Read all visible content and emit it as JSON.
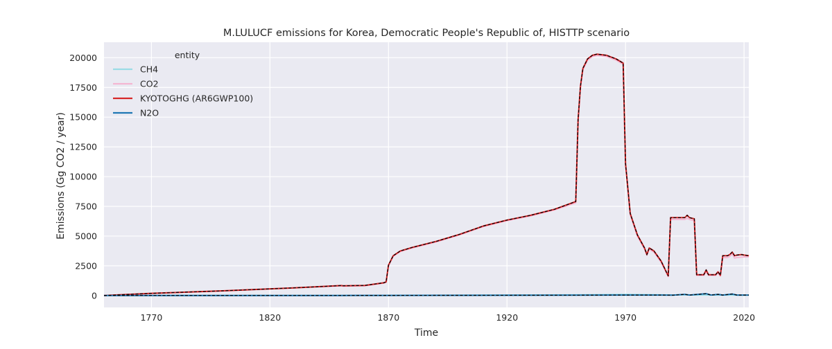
{
  "colors": {
    "plot_bg": "#EAEAF2",
    "grid": "#FFFFFF",
    "CH4": "#9ADCE6",
    "CO2": "#F4B6D2",
    "KYOTOGHG": "#D62728",
    "N2O": "#1F77B4",
    "overlay": "#000000"
  },
  "chart_data": {
    "type": "line",
    "title": "M.LULUCF emissions for Korea, Democratic People's Republic of, HISTTP scenario",
    "xlabel": "Time",
    "ylabel": "Emissions (Gg CO2 / year)",
    "xlim": [
      1750,
      2022
    ],
    "ylim": [
      -1000,
      21300
    ],
    "x_ticks": [
      1770,
      1820,
      1870,
      1920,
      1970,
      2020
    ],
    "y_ticks": [
      0,
      2500,
      5000,
      7500,
      10000,
      12500,
      15000,
      17500,
      20000
    ],
    "grid": true,
    "legend": {
      "title": "entity",
      "position": "upper-left"
    },
    "series": [
      {
        "name": "CH4",
        "color_key": "CH4",
        "dashed_overlay": false,
        "points": [
          [
            1750,
            5
          ],
          [
            1800,
            8
          ],
          [
            1850,
            12
          ],
          [
            1870,
            20
          ],
          [
            1900,
            30
          ],
          [
            1950,
            60
          ],
          [
            1970,
            100
          ],
          [
            1980,
            80
          ],
          [
            1990,
            50
          ],
          [
            1995,
            60
          ],
          [
            2000,
            40
          ],
          [
            2010,
            40
          ],
          [
            2022,
            30
          ]
        ]
      },
      {
        "name": "CO2",
        "color_key": "CO2",
        "dashed_overlay": false,
        "points": [
          [
            1750,
            0
          ],
          [
            1770,
            180
          ],
          [
            1800,
            390
          ],
          [
            1830,
            640
          ],
          [
            1850,
            820
          ],
          [
            1851,
            790
          ],
          [
            1860,
            830
          ],
          [
            1868,
            1050
          ],
          [
            1869,
            1120
          ],
          [
            1870,
            2500
          ],
          [
            1872,
            3300
          ],
          [
            1875,
            3700
          ],
          [
            1880,
            4000
          ],
          [
            1890,
            4500
          ],
          [
            1900,
            5100
          ],
          [
            1910,
            5800
          ],
          [
            1920,
            6300
          ],
          [
            1930,
            6700
          ],
          [
            1940,
            7200
          ],
          [
            1949,
            7800
          ],
          [
            1950,
            14700
          ],
          [
            1951,
            17500
          ],
          [
            1952,
            19000
          ],
          [
            1954,
            19800
          ],
          [
            1956,
            20100
          ],
          [
            1958,
            20200
          ],
          [
            1962,
            20100
          ],
          [
            1966,
            19800
          ],
          [
            1969,
            19450
          ],
          [
            1970,
            11000
          ],
          [
            1972,
            6800
          ],
          [
            1975,
            5000
          ],
          [
            1978,
            3900
          ],
          [
            1979,
            3400
          ],
          [
            1980,
            3900
          ],
          [
            1982,
            3650
          ],
          [
            1985,
            2800
          ],
          [
            1988,
            1600
          ],
          [
            1989,
            6400
          ],
          [
            1995,
            6400
          ],
          [
            1996,
            6500
          ],
          [
            1997,
            6400
          ],
          [
            1999,
            6300
          ],
          [
            2000,
            1700
          ],
          [
            2003,
            1700
          ],
          [
            2004,
            2000
          ],
          [
            2005,
            1700
          ],
          [
            2008,
            1700
          ],
          [
            2009,
            1900
          ],
          [
            2010,
            1650
          ],
          [
            2011,
            3200
          ],
          [
            2013,
            3200
          ],
          [
            2014,
            3300
          ],
          [
            2015,
            3500
          ],
          [
            2016,
            3150
          ],
          [
            2017,
            3200
          ],
          [
            2020,
            3250
          ],
          [
            2022,
            3250
          ]
        ]
      },
      {
        "name": "KYOTOGHG (AR6GWP100)",
        "color_key": "KYOTOGHG",
        "dashed_overlay": true,
        "points": [
          [
            1750,
            0
          ],
          [
            1770,
            190
          ],
          [
            1800,
            400
          ],
          [
            1830,
            650
          ],
          [
            1850,
            840
          ],
          [
            1851,
            820
          ],
          [
            1860,
            850
          ],
          [
            1868,
            1070
          ],
          [
            1869,
            1150
          ],
          [
            1870,
            2550
          ],
          [
            1872,
            3350
          ],
          [
            1875,
            3750
          ],
          [
            1880,
            4050
          ],
          [
            1890,
            4550
          ],
          [
            1900,
            5150
          ],
          [
            1910,
            5850
          ],
          [
            1920,
            6350
          ],
          [
            1930,
            6750
          ],
          [
            1940,
            7250
          ],
          [
            1949,
            7900
          ],
          [
            1950,
            14800
          ],
          [
            1951,
            17600
          ],
          [
            1952,
            19100
          ],
          [
            1954,
            19900
          ],
          [
            1956,
            20200
          ],
          [
            1958,
            20300
          ],
          [
            1962,
            20200
          ],
          [
            1966,
            19900
          ],
          [
            1969,
            19550
          ],
          [
            1970,
            11100
          ],
          [
            1972,
            6900
          ],
          [
            1975,
            5100
          ],
          [
            1978,
            4000
          ],
          [
            1979,
            3450
          ],
          [
            1980,
            4000
          ],
          [
            1982,
            3750
          ],
          [
            1985,
            2900
          ],
          [
            1988,
            1650
          ],
          [
            1989,
            6550
          ],
          [
            1995,
            6550
          ],
          [
            1996,
            6750
          ],
          [
            1997,
            6550
          ],
          [
            1999,
            6450
          ],
          [
            2000,
            1750
          ],
          [
            2003,
            1750
          ],
          [
            2004,
            2150
          ],
          [
            2005,
            1750
          ],
          [
            2008,
            1750
          ],
          [
            2009,
            2000
          ],
          [
            2010,
            1700
          ],
          [
            2011,
            3350
          ],
          [
            2013,
            3350
          ],
          [
            2014,
            3450
          ],
          [
            2015,
            3650
          ],
          [
            2016,
            3350
          ],
          [
            2017,
            3400
          ],
          [
            2019,
            3450
          ],
          [
            2020,
            3400
          ],
          [
            2022,
            3350
          ]
        ]
      },
      {
        "name": "N2O",
        "color_key": "N2O",
        "dashed_overlay": true,
        "points": [
          [
            1750,
            5
          ],
          [
            1800,
            8
          ],
          [
            1850,
            10
          ],
          [
            1870,
            15
          ],
          [
            1900,
            20
          ],
          [
            1950,
            30
          ],
          [
            1970,
            40
          ],
          [
            1985,
            40
          ],
          [
            1990,
            30
          ],
          [
            1995,
            100
          ],
          [
            1997,
            40
          ],
          [
            2004,
            160
          ],
          [
            2006,
            40
          ],
          [
            2009,
            100
          ],
          [
            2011,
            40
          ],
          [
            2015,
            130
          ],
          [
            2017,
            40
          ],
          [
            2022,
            40
          ]
        ]
      }
    ]
  }
}
